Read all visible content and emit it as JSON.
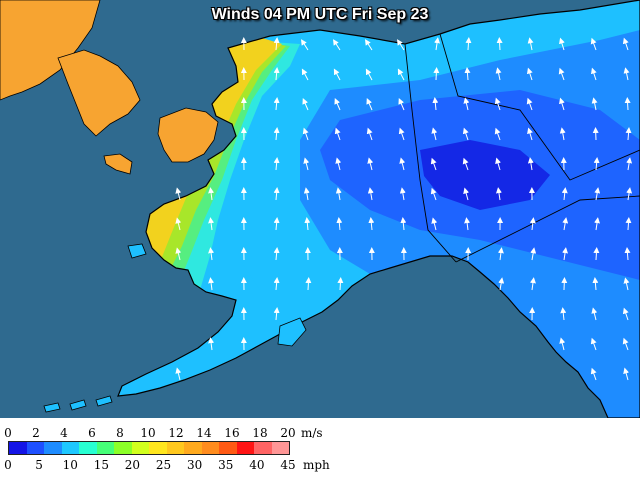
{
  "title": "Winds 04 PM UTC Fri Sep 23",
  "legend": {
    "colors": [
      "#1414e6",
      "#1e50ff",
      "#1e8cff",
      "#1ec8ff",
      "#28ffd2",
      "#46ff78",
      "#8cff28",
      "#d2ff1e",
      "#ffe61e",
      "#ffc81e",
      "#ffaa1e",
      "#ff8c1e",
      "#ff5a14",
      "#ff1414",
      "#ff6464",
      "#ff9696"
    ],
    "ms_ticks": [
      "0",
      "2",
      "4",
      "6",
      "8",
      "10",
      "12",
      "14",
      "16",
      "18",
      "20"
    ],
    "ms_unit": "m/s",
    "mph_ticks": [
      "0",
      "5",
      "10",
      "15",
      "20",
      "25",
      "30",
      "35",
      "40",
      "45"
    ],
    "mph_unit": "mph"
  },
  "map": {
    "ocean_color": "#2f6a8f",
    "field_colors": {
      "orange": "#f7a431",
      "yellow": "#f2d21e",
      "lime": "#a8e62a",
      "green": "#56ee80",
      "aqua": "#2fe8e0",
      "cyan": "#1ec0ff",
      "light_blue": "#1e8cff",
      "blue": "#1e64ff",
      "dark_blue": "#1428e6"
    },
    "arrow_color": "#ffffff",
    "border_color": "#000000"
  }
}
